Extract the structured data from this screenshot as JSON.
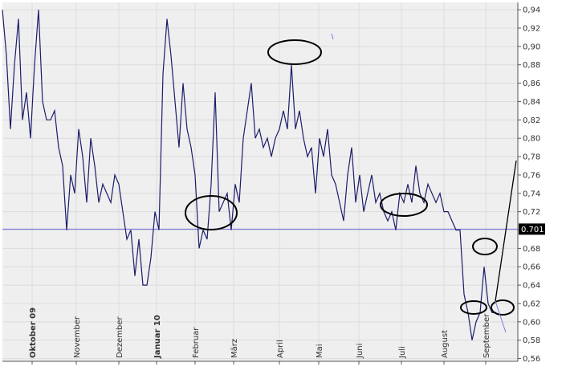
{
  "chart_data": {
    "type": "line",
    "xlim": [
      0,
      128.4
    ],
    "xticks": [
      {
        "value": 7.4,
        "label": "Oktober 09"
      },
      {
        "value": 18.4,
        "label": "November"
      },
      {
        "value": 29,
        "label": "Dezember"
      },
      {
        "value": 38.4,
        "label": "Januar 10"
      },
      {
        "value": 48,
        "label": "Februar"
      },
      {
        "value": 57.6,
        "label": "März"
      },
      {
        "value": 69,
        "label": "April"
      },
      {
        "value": 78.8,
        "label": "Mai"
      },
      {
        "value": 88.8,
        "label": "Juni"
      },
      {
        "value": 99.4,
        "label": "Juli"
      },
      {
        "value": 110,
        "label": "August"
      },
      {
        "value": 120.4,
        "label": "September"
      }
    ],
    "ylim": [
      0.557,
      0.948
    ],
    "yticks": [
      {
        "value": 0.56,
        "label": "0,56"
      },
      {
        "value": 0.58,
        "label": "0,58"
      },
      {
        "value": 0.6,
        "label": "0,60"
      },
      {
        "value": 0.62,
        "label": "0,62"
      },
      {
        "value": 0.64,
        "label": "0,64"
      },
      {
        "value": 0.66,
        "label": "0,66"
      },
      {
        "value": 0.68,
        "label": "0,68"
      },
      {
        "value": 0.7,
        "label": "0,70"
      },
      {
        "value": 0.72,
        "label": "0,72"
      },
      {
        "value": 0.74,
        "label": "0,74"
      },
      {
        "value": 0.76,
        "label": "0,76"
      },
      {
        "value": 0.78,
        "label": "0,78"
      },
      {
        "value": 0.8,
        "label": "0,80"
      },
      {
        "value": 0.82,
        "label": "0,82"
      },
      {
        "value": 0.84,
        "label": "0,84"
      },
      {
        "value": 0.86,
        "label": "0,86"
      },
      {
        "value": 0.88,
        "label": "0,88"
      },
      {
        "value": 0.9,
        "label": "0,90"
      },
      {
        "value": 0.92,
        "label": "0,92"
      },
      {
        "value": 0.94,
        "label": "0,94"
      }
    ],
    "grid": true,
    "reference": {
      "value": 0.701,
      "color": "#6f6fe0"
    },
    "series": [
      {
        "color": "#1c1c6b",
        "values": [
          0.94,
          0.89,
          0.81,
          0.88,
          0.93,
          0.82,
          0.85,
          0.8,
          0.88,
          0.94,
          0.84,
          0.82,
          0.82,
          0.83,
          0.79,
          0.77,
          0.7,
          0.76,
          0.74,
          0.81,
          0.78,
          0.73,
          0.8,
          0.77,
          0.73,
          0.75,
          0.74,
          0.73,
          0.76,
          0.75,
          0.72,
          0.69,
          0.7,
          0.65,
          0.69,
          0.64,
          0.64,
          0.67,
          0.72,
          0.7,
          0.87,
          0.93,
          0.89,
          0.84,
          0.79,
          0.86,
          0.81,
          0.79,
          0.76,
          0.68,
          0.7,
          0.69,
          0.75,
          0.85,
          0.72,
          0.73,
          0.74,
          0.7,
          0.75,
          0.73,
          0.8,
          0.83,
          0.86,
          0.8,
          0.81,
          0.79,
          0.8,
          0.78,
          0.8,
          0.81,
          0.83,
          0.81,
          0.88,
          0.81,
          0.83,
          0.8,
          0.78,
          0.79,
          0.74,
          0.8,
          0.78,
          0.81,
          0.76,
          0.75,
          0.73,
          0.71,
          0.76,
          0.79,
          0.73,
          0.76,
          0.72,
          0.74,
          0.76,
          0.73,
          0.74,
          0.72,
          0.71,
          0.72,
          0.7,
          0.74,
          0.73,
          0.75,
          0.73,
          0.77,
          0.74,
          0.73,
          0.75,
          0.74,
          0.73,
          0.74,
          0.72,
          0.72,
          0.71,
          0.7,
          0.7,
          0.63,
          0.61,
          0.58,
          0.6,
          0.61,
          0.66,
          0.62,
          0.61,
          0.61
        ]
      }
    ]
  }
}
